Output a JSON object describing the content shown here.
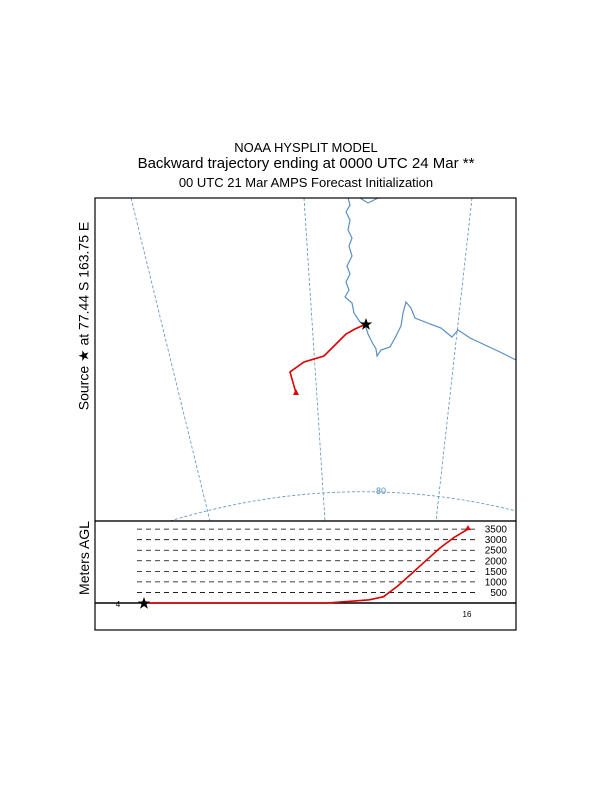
{
  "header": {
    "line1": "NOAA HYSPLIT MODEL",
    "line2": "Backward trajectory ending at 0000 UTC 24 Mar **",
    "line3": "00 UTC 21 Mar    AMPS  Forecast Initialization"
  },
  "side": {
    "source_label": "Source ★  at   77.44 S  163.75 E",
    "profile_label": "Meters AGL"
  },
  "map": {
    "lat_label": "80",
    "colors": {
      "coast": "#5a8fc0",
      "grid": "#5a8fc0",
      "trajectory": "#dd0000",
      "frame": "#000000"
    }
  },
  "chart_data": {
    "type": "line",
    "title": "Backward trajectory ending at 0000 UTC 24 Mar **",
    "ylabel": "Meters AGL",
    "yticks": [
      500,
      1000,
      1500,
      2000,
      2500,
      3000,
      3500
    ],
    "ytick_labels": [
      "500",
      "1000",
      "1500",
      "2000",
      "2500",
      "3000",
      "3500"
    ],
    "ylim": [
      0,
      3500
    ],
    "x_labels": [
      "4",
      "16"
    ],
    "series": [
      {
        "values": [
          0,
          0,
          0,
          0,
          0,
          0,
          0,
          0,
          0,
          0,
          0,
          0,
          0,
          0,
          50,
          100,
          150,
          300,
          800,
          1400,
          2000,
          2600,
          3100,
          3500
        ]
      }
    ]
  }
}
